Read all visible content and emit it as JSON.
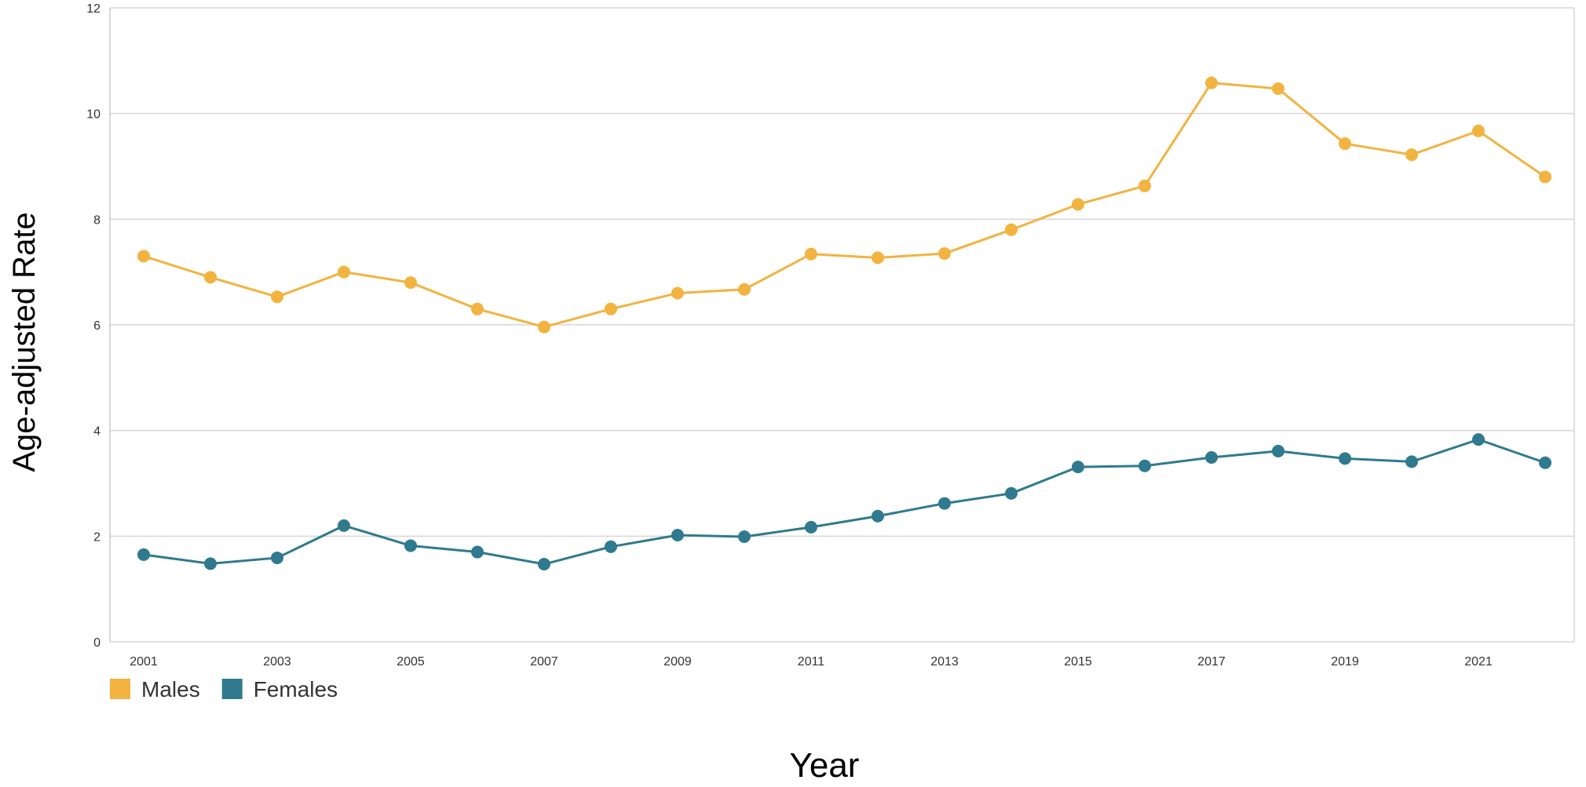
{
  "chart_data": {
    "type": "line",
    "title": "",
    "xlabel": "Year",
    "ylabel": "Age-adjusted Rate",
    "ylim": [
      0,
      12
    ],
    "yticks": [
      0,
      2,
      4,
      6,
      8,
      10,
      12
    ],
    "x": [
      2001,
      2002,
      2003,
      2004,
      2005,
      2006,
      2007,
      2008,
      2009,
      2010,
      2011,
      2012,
      2013,
      2014,
      2015,
      2016,
      2017,
      2018,
      2019,
      2020,
      2021,
      2022
    ],
    "xticks": [
      "2001",
      "2003",
      "2005",
      "2007",
      "2009",
      "2011",
      "2013",
      "2015",
      "2017",
      "2019",
      "2021"
    ],
    "grid": true,
    "legend": "bottom-left",
    "series": [
      {
        "name": "Males",
        "color": "#F2B340",
        "values": [
          7.3,
          6.9,
          6.53,
          7.0,
          6.8,
          6.3,
          5.96,
          6.3,
          6.6,
          6.67,
          7.34,
          7.27,
          7.35,
          7.8,
          8.28,
          8.63,
          10.58,
          10.47,
          9.43,
          9.22,
          9.67,
          8.8
        ]
      },
      {
        "name": "Females",
        "color": "#2F7A8E",
        "values": [
          1.65,
          1.48,
          1.59,
          2.2,
          1.82,
          1.7,
          1.47,
          1.8,
          2.02,
          1.99,
          2.17,
          2.38,
          2.62,
          2.81,
          3.31,
          3.33,
          3.49,
          3.61,
          3.47,
          3.41,
          3.83,
          3.39
        ]
      }
    ]
  }
}
